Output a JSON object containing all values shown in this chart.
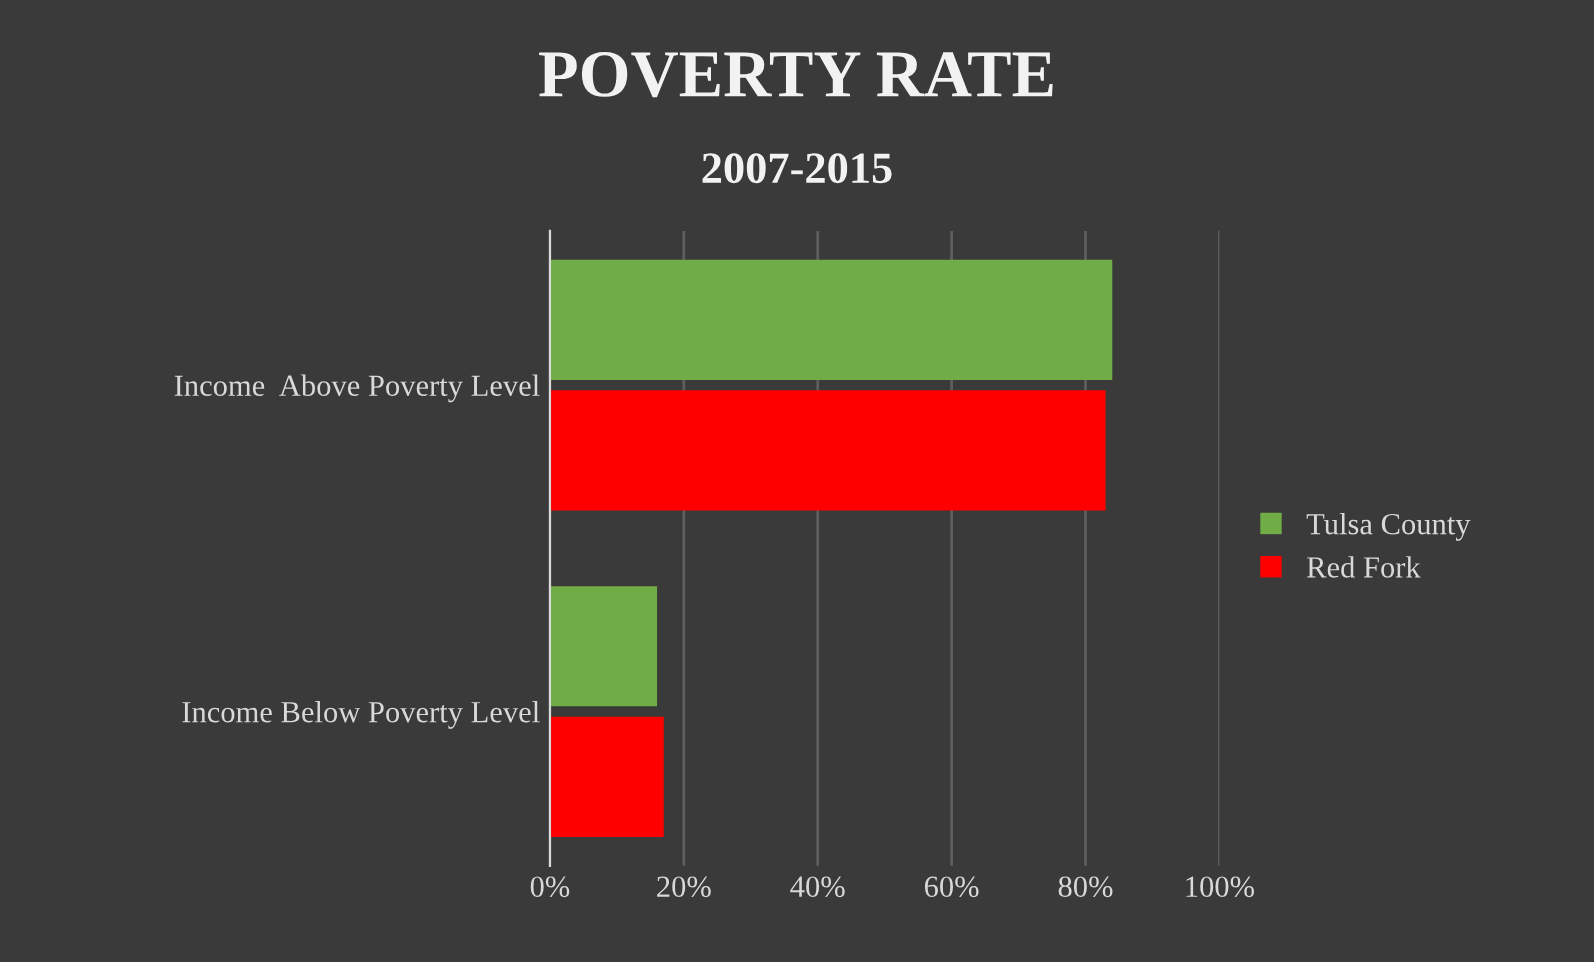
{
  "chart_data": {
    "type": "bar",
    "orientation": "horizontal",
    "title": "POVERTY RATE",
    "subtitle": "2007-2015",
    "categories": [
      "Income  Above Poverty Level",
      "Income Below Poverty Level"
    ],
    "series": [
      {
        "name": "Tulsa County",
        "color": "#70ad47",
        "values": [
          84,
          16
        ]
      },
      {
        "name": "Red Fork",
        "color": "#ff0000",
        "values": [
          83,
          17
        ]
      }
    ],
    "xlim": [
      0,
      100
    ],
    "xticks": [
      {
        "value": 0,
        "label": "0%"
      },
      {
        "value": 20,
        "label": "20%"
      },
      {
        "value": 40,
        "label": "40%"
      },
      {
        "value": 60,
        "label": "60%"
      },
      {
        "value": 80,
        "label": "80%"
      },
      {
        "value": 100,
        "label": "100%"
      }
    ],
    "grid": "x",
    "legend": "right"
  }
}
